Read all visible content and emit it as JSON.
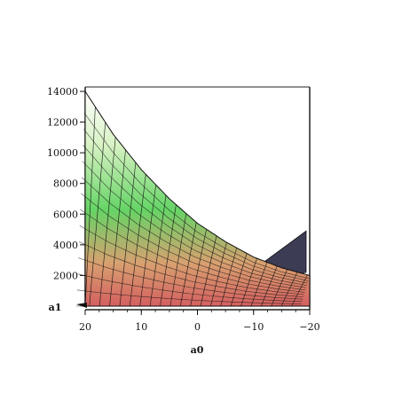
{
  "chart_data": {
    "type": "surface3d",
    "title": "",
    "xlabel": "a0",
    "ylabel": "a1",
    "x_ticks": [
      "20",
      "10",
      "0",
      "-10",
      "-20"
    ],
    "z_ticks": [
      "14000",
      "12000",
      "10000",
      "8000",
      "6000",
      "4000",
      "2000"
    ],
    "x_range": [
      20,
      -20
    ],
    "z_range": [
      0,
      14000
    ],
    "grid": false,
    "legend": "none",
    "surface_colors": {
      "high": "#d8f2c4",
      "mid": "#66d466",
      "low": "#d46060",
      "back_fold": "#3c3c55",
      "mesh": "#111111"
    },
    "surface_profile": [
      {
        "a0": 20,
        "z": 14000
      },
      {
        "a0": 15,
        "z": 11200
      },
      {
        "a0": 10,
        "z": 8900
      },
      {
        "a0": 5,
        "z": 7000
      },
      {
        "a0": 0,
        "z": 5400
      },
      {
        "a0": -5,
        "z": 4200
      },
      {
        "a0": -10,
        "z": 3200
      },
      {
        "a0": -15,
        "z": 2500
      },
      {
        "a0": -20,
        "z": 2000
      }
    ]
  }
}
